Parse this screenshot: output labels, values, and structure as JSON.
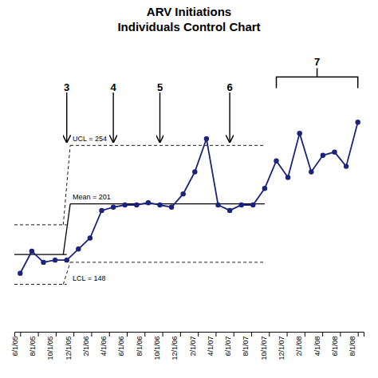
{
  "chart_data": {
    "type": "line",
    "title": "ARV Initiations",
    "subtitle": "Individuals Control Chart",
    "color": "#1a237e",
    "marker": "circle",
    "grid": false,
    "tick_labels": "x",
    "values": [
      138,
      158,
      148,
      150,
      150,
      160,
      170,
      195,
      198,
      200,
      200,
      202,
      200,
      198,
      210,
      230,
      260,
      200,
      195,
      200,
      200,
      215,
      240,
      225,
      265,
      230,
      245,
      248,
      235,
      275
    ],
    "xlim": [
      -0.5,
      29.5
    ],
    "xticks": [
      {
        "value": 0,
        "label": "6/1/05"
      },
      {
        "value": 1.5263157894736843,
        "label": "8/1/05"
      },
      {
        "value": 3.0526315789473686,
        "label": "10/1/05"
      },
      {
        "value": 4.578947368421053,
        "label": "12/1/05"
      },
      {
        "value": 6.105263157894737,
        "label": "2/1/06"
      },
      {
        "value": 7.631578947368421,
        "label": "4/1/06"
      },
      {
        "value": 9.157894736842106,
        "label": "6/1/06"
      },
      {
        "value": 10.68421052631579,
        "label": "8/1/06"
      },
      {
        "value": 12.210526315789474,
        "label": "10/1/06"
      },
      {
        "value": 13.736842105263158,
        "label": "12/1/06"
      },
      {
        "value": 15.263157894736842,
        "label": "2/1/07"
      },
      {
        "value": 16.789473684210527,
        "label": "4/1/07"
      },
      {
        "value": 18.31578947368421,
        "label": "6/1/07"
      },
      {
        "value": 19.842105263157894,
        "label": "8/1/07"
      },
      {
        "value": 21.36842105263158,
        "label": "10/1/07"
      },
      {
        "value": 22.894736842105264,
        "label": "12/1/07"
      },
      {
        "value": 24.42105263157895,
        "label": "2/1/08"
      },
      {
        "value": 25.94736842105263,
        "label": "4/1/08"
      },
      {
        "value": 27.473684210526315,
        "label": "6/1/08"
      },
      {
        "value": 29,
        "label": "8/1/08"
      }
    ],
    "ylim": [
      85,
      315
    ],
    "phases": [
      {
        "end": 4,
        "mean": 155,
        "ucl": 182,
        "lcl": 128
      },
      {
        "end": 21,
        "mean": 201,
        "ucl": 254,
        "lcl": 148,
        "ucl_label": "UCL = 254",
        "mean_label": "Mean = 201",
        "lcl_label": "LCL = 148"
      }
    ],
    "annotations": [
      {
        "text": "3",
        "x": 4
      },
      {
        "text": "4",
        "x": 8
      },
      {
        "text": "5",
        "x": 12
      },
      {
        "text": "6",
        "x": 18
      }
    ],
    "bracket": {
      "text": "7",
      "start": 22,
      "end": 29
    }
  }
}
